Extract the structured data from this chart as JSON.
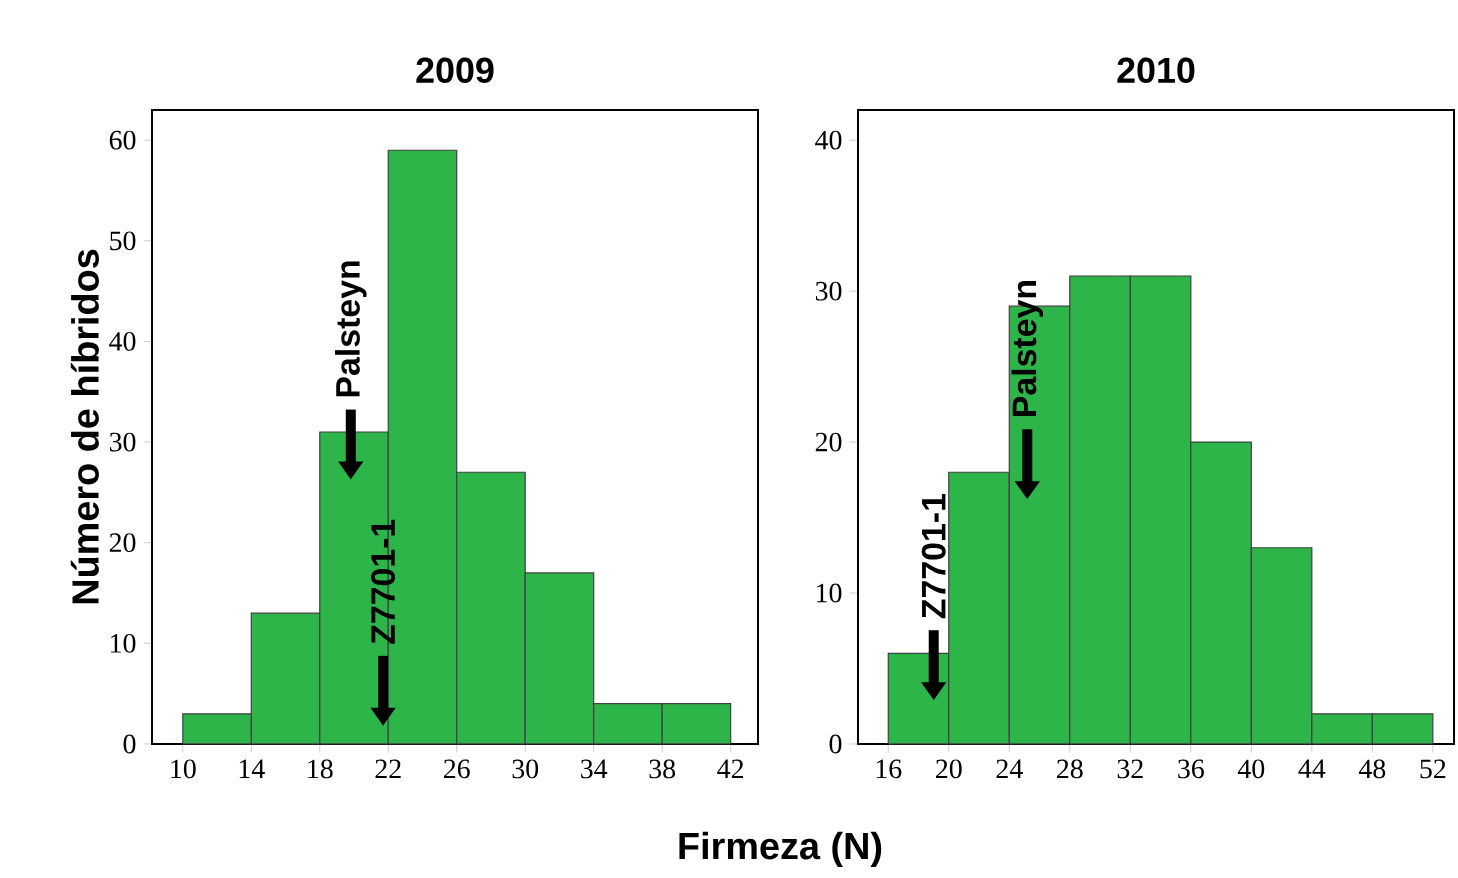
{
  "chart_data": [
    {
      "type": "histogram",
      "title": "2009",
      "xlabel": "Firmeza (N)",
      "ylabel": "Número de híbridos",
      "color": "#2eb54a",
      "bins": [
        10,
        14,
        18,
        22,
        26,
        30,
        34,
        38,
        42
      ],
      "values": [
        3,
        13,
        31,
        59,
        27,
        17,
        4,
        4
      ],
      "xlim": [
        8.2,
        43.6
      ],
      "ylim": [
        0,
        63
      ],
      "xticks": [
        10,
        14,
        18,
        22,
        26,
        30,
        34,
        38,
        42
      ],
      "yticks": [
        0,
        10,
        20,
        30,
        40,
        50,
        60
      ],
      "annotations": [
        "Palsteyn",
        {
          "text": "Z7701-1",
          "x": 21.7,
          "y": 1.8
        }
      ]
    },
    {
      "type": "histogram",
      "title": "2010",
      "color": "#2eb54a",
      "bins": [
        16,
        20,
        24,
        28,
        32,
        36,
        40,
        44,
        48,
        52
      ],
      "values": [
        6,
        18,
        29,
        31,
        31,
        20,
        13,
        2,
        2
      ],
      "xlim": [
        14.0,
        53.4
      ],
      "ylim": [
        0,
        42
      ],
      "xticks": [
        16,
        20,
        24,
        28,
        32,
        36,
        40,
        44,
        48,
        52
      ],
      "yticks": [
        0,
        10,
        20,
        30,
        40
      ],
      "annotations": [
        "Palsteyn",
        "Z7701-1"
      ]
    }
  ]
}
